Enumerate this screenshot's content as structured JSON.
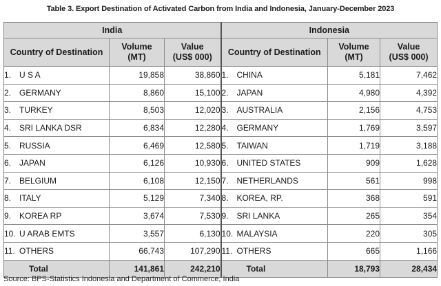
{
  "title": "Table 3. Export Destination of Activated Carbon from India and Indonesia, January-December 2023",
  "groups": {
    "left": "India",
    "right": "Indonesia"
  },
  "headers": {
    "country": "Country of Destination",
    "volume_line1": "Volume",
    "volume_line2": "(MT)",
    "value_line1": "Value",
    "value_line2": "(US$ 000)"
  },
  "rows": [
    {
      "in_idx": "1.",
      "in_country": "U S A",
      "in_volume": "19,858",
      "in_value": "38,860",
      "id_idx": "1.",
      "id_country": "CHINA",
      "id_volume": "5,181",
      "id_value": "7,462"
    },
    {
      "in_idx": "2.",
      "in_country": "GERMANY",
      "in_volume": "8,860",
      "in_value": "15,100",
      "id_idx": "2.",
      "id_country": "JAPAN",
      "id_volume": "4,980",
      "id_value": "4,392"
    },
    {
      "in_idx": "3.",
      "in_country": "TURKEY",
      "in_volume": "8,503",
      "in_value": "12,020",
      "id_idx": "3.",
      "id_country": "AUSTRALIA",
      "id_volume": "2,156",
      "id_value": "4,753"
    },
    {
      "in_idx": "4.",
      "in_country": "SRI LANKA DSR",
      "in_volume": "6,834",
      "in_value": "12,280",
      "id_idx": "4.",
      "id_country": "GERMANY",
      "id_volume": "1,769",
      "id_value": "3,597"
    },
    {
      "in_idx": "5.",
      "in_country": "RUSSIA",
      "in_volume": "6,469",
      "in_value": "12,580",
      "id_idx": "5.",
      "id_country": "TAIWAN",
      "id_volume": "1,719",
      "id_value": "3,188"
    },
    {
      "in_idx": "6.",
      "in_country": "JAPAN",
      "in_volume": "6,126",
      "in_value": "10,930",
      "id_idx": "6.",
      "id_country": "UNITED STATES",
      "id_volume": "909",
      "id_value": "1,628"
    },
    {
      "in_idx": "7.",
      "in_country": "BELGIUM",
      "in_volume": "6,108",
      "in_value": "12,150",
      "id_idx": "7.",
      "id_country": "NETHERLANDS",
      "id_volume": "561",
      "id_value": "998"
    },
    {
      "in_idx": "8.",
      "in_country": "ITALY",
      "in_volume": "5,129",
      "in_value": "7,340",
      "id_idx": "8.",
      "id_country": "KOREA, RP.",
      "id_volume": "368",
      "id_value": "591"
    },
    {
      "in_idx": "9.",
      "in_country": "KOREA RP",
      "in_volume": "3,674",
      "in_value": "7,530",
      "id_idx": "9.",
      "id_country": "SRI LANKA",
      "id_volume": "265",
      "id_value": "354"
    },
    {
      "in_idx": "10.",
      "in_country": "U ARAB EMTS",
      "in_volume": "3,557",
      "in_value": "6,130",
      "id_idx": "10.",
      "id_country": "MALAYSIA",
      "id_volume": "220",
      "id_value": "305"
    },
    {
      "in_idx": "11.",
      "in_country": "OTHERS",
      "in_volume": "66,743",
      "in_value": "107,290",
      "id_idx": "11.",
      "id_country": "OTHERS",
      "id_volume": "665",
      "id_value": "1,166"
    }
  ],
  "total": {
    "label": "Total",
    "in_volume": "141,861",
    "in_value": "242,210",
    "id_volume": "18,793",
    "id_value": "28,434"
  },
  "source": "Source: BPS-Statistics Indonesia and Department of Commerce, India"
}
